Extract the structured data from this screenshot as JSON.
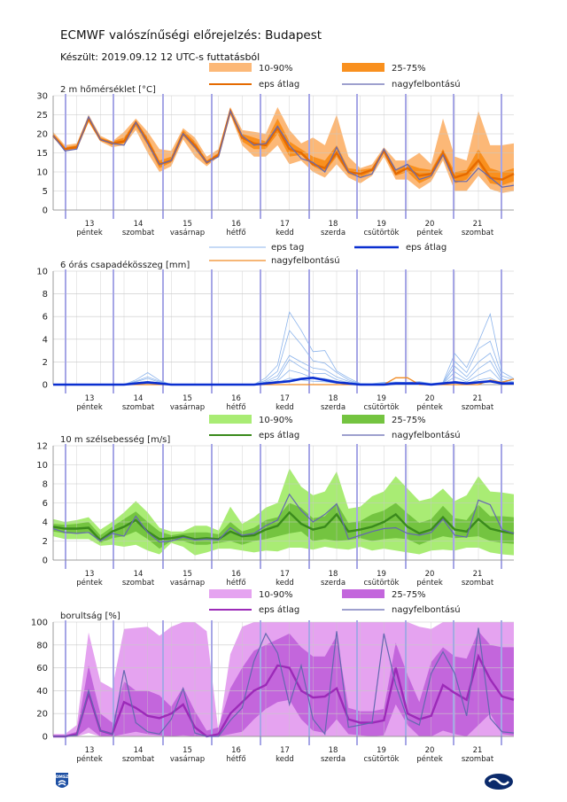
{
  "title": "ECMWF valószínűségi előrejelzés: Budapest",
  "subtitle": "Készült: 2019.09.12 12 UTC-s futtatásból",
  "days": [
    {
      "num": "13",
      "name": "péntek"
    },
    {
      "num": "14",
      "name": "szombat"
    },
    {
      "num": "15",
      "name": "vasárnap"
    },
    {
      "num": "16",
      "name": "hétfő"
    },
    {
      "num": "17",
      "name": "kedd"
    },
    {
      "num": "18",
      "name": "szerda"
    },
    {
      "num": "19",
      "name": "csütörtök"
    },
    {
      "num": "20",
      "name": "péntek"
    },
    {
      "num": "21",
      "name": "szombat"
    }
  ],
  "colors": {
    "temp_1090": "#fcb877",
    "temp_2575": "#f9901e",
    "temp_mean": "#e56a00",
    "prec_member": "#8cb4ec",
    "prec_mean": "#0a2fd0",
    "prec_hires": "#f08a24",
    "wind_1090": "#a9ec74",
    "wind_2575": "#74c440",
    "wind_mean": "#3a8a1c",
    "cloud_1090": "#e5a3f0",
    "cloud_2575": "#c366dc",
    "cloud_mean": "#9c2ab8",
    "hires": "#6468b0",
    "grid": "#c8c8c8",
    "day_line": "#a6a6e6"
  },
  "chart_data": [
    {
      "type": "area",
      "title": "2 m hőmérséklet [°C]",
      "ylim": [
        0,
        30
      ],
      "yticks": [
        0,
        5,
        10,
        15,
        20,
        25,
        30
      ],
      "legend": {
        "band_outer": "10-90%",
        "band_inner": "25-75%",
        "mean": "eps átlag",
        "hires": "nagyfelbontású"
      },
      "p10": [
        19,
        15.5,
        16,
        23,
        18,
        16.5,
        17,
        21,
        15,
        10,
        11.5,
        18.5,
        14,
        11.5,
        14,
        25,
        17,
        14,
        14,
        17,
        12,
        13,
        10,
        8.5,
        12,
        8.5,
        7,
        9,
        14,
        8,
        8,
        5.5,
        7.5,
        13,
        5,
        5,
        9,
        5.5,
        4.5,
        5
      ],
      "p25": [
        19.5,
        16,
        16,
        24,
        18.5,
        17,
        17.5,
        22,
        17,
        11,
        12.5,
        19.5,
        16,
        12,
        14,
        25.5,
        18,
        16,
        16,
        20,
        14,
        14.5,
        11.5,
        10,
        14,
        9.5,
        8.5,
        10,
        15,
        9,
        10,
        7,
        8.5,
        14,
        7,
        8,
        12,
        7,
        6.5,
        7.5
      ],
      "mean": [
        19.5,
        16,
        16.5,
        24,
        18.5,
        17.5,
        18,
        23,
        18,
        12,
        13,
        20,
        17,
        12.5,
        14.5,
        26,
        19,
        17.5,
        17,
        21.5,
        16,
        15,
        12,
        11,
        15,
        10,
        9.5,
        10.5,
        15.5,
        9.5,
        11,
        9,
        9.5,
        15,
        8.5,
        9.5,
        13,
        8.5,
        8,
        9.5
      ],
      "p75": [
        20,
        16.5,
        17,
        24.5,
        19,
        18,
        19,
        23.5,
        19,
        13,
        14,
        21,
        18,
        13,
        15,
        26.5,
        20,
        19,
        18,
        24,
        18,
        16,
        14,
        13,
        17,
        11,
        10.5,
        11,
        16,
        10.5,
        12,
        11,
        10.5,
        16,
        10,
        10.5,
        16,
        11,
        10,
        11
      ],
      "p90": [
        20.5,
        17,
        17.5,
        25,
        19.5,
        18,
        20.5,
        24,
        20.5,
        16,
        15.5,
        21.5,
        19,
        14,
        16,
        27,
        21,
        20.5,
        20,
        27,
        21,
        17.5,
        19,
        17,
        25,
        14,
        11,
        12,
        16.5,
        13,
        13,
        15,
        12,
        24,
        14,
        13,
        26,
        17,
        17,
        17.5
      ],
      "hires": [
        19.5,
        15.5,
        16,
        24.5,
        18.5,
        17.5,
        17,
        23,
        17.5,
        12,
        13,
        20,
        16.5,
        12.5,
        14,
        26,
        19.5,
        17,
        17.5,
        22,
        17,
        13.5,
        12.5,
        10,
        16.5,
        10,
        8.5,
        9.5,
        16,
        10.5,
        12,
        8,
        9,
        14.5,
        7.5,
        7.5,
        11,
        8.5,
        6,
        6.5
      ]
    },
    {
      "type": "line",
      "title": "6 órás csapadékösszeg [mm]",
      "ylim": [
        0,
        10
      ],
      "yticks": [
        0,
        2,
        4,
        6,
        8,
        10
      ],
      "legend": {
        "members": "eps tag",
        "mean": "eps átlag",
        "hires": "nagyfelbontású"
      },
      "mean": [
        0,
        0,
        0,
        0,
        0,
        0,
        0,
        0.1,
        0.2,
        0.1,
        0,
        0,
        0,
        0,
        0,
        0,
        0,
        0,
        0.1,
        0.2,
        0.3,
        0.5,
        0.6,
        0.4,
        0.2,
        0.1,
        0,
        0,
        0,
        0.1,
        0.1,
        0.1,
        0,
        0.1,
        0.2,
        0.1,
        0.2,
        0.3,
        0.1,
        0.1
      ],
      "hires": [
        0,
        0,
        0,
        0,
        0,
        0,
        0,
        0,
        0,
        0,
        0,
        0,
        0,
        0,
        0,
        0,
        0,
        0,
        0,
        0,
        0,
        0,
        0,
        0,
        0,
        0,
        0,
        0,
        0,
        0.6,
        0.6,
        0,
        0,
        0,
        0,
        0,
        0,
        0.4,
        0.2,
        0.5
      ],
      "member_max": [
        0,
        0,
        0,
        0,
        0,
        0,
        0,
        0.5,
        1.1,
        0.4,
        0,
        0,
        0,
        0,
        0,
        0,
        0,
        0,
        0.6,
        2,
        6.8,
        5,
        3.5,
        3,
        1.5,
        0.6,
        0.1,
        0.1,
        0.2,
        0.3,
        0.2,
        0.3,
        0.1,
        0.2,
        3.4,
        1.5,
        4.5,
        6.5,
        1.2,
        0.6
      ]
    },
    {
      "type": "area",
      "title": "10 m szélsebesség [m/s]",
      "ylim": [
        0,
        12
      ],
      "yticks": [
        0,
        2,
        4,
        6,
        8,
        10,
        12
      ],
      "legend": {
        "band_outer": "10-90%",
        "band_inner": "25-75%",
        "mean": "eps átlag",
        "hires": "nagyfelbontású"
      },
      "p10": [
        2.5,
        2.2,
        2.2,
        2.2,
        1.5,
        1.6,
        1.4,
        1.6,
        1,
        0.6,
        1.8,
        1.4,
        0.5,
        0.8,
        1.2,
        1.2,
        1,
        0.8,
        1,
        0.9,
        1.3,
        1.3,
        1.1,
        1.4,
        1.2,
        1.1,
        1.4,
        1,
        1.2,
        1,
        0.8,
        0.6,
        1,
        1.1,
        1,
        1.3,
        1.3,
        0.8,
        0.6,
        0.5
      ],
      "p25": [
        3,
        2.8,
        2.8,
        3,
        1.8,
        2.3,
        2.5,
        3,
        2.2,
        1.2,
        2,
        2,
        1.6,
        1.6,
        1.8,
        2,
        1.6,
        2,
        2.2,
        2.5,
        2.8,
        3,
        2,
        2.2,
        2,
        2.1,
        2.3,
        2,
        2.2,
        2.3,
        2.2,
        1.6,
        2.1,
        2.5,
        2.3,
        2.4,
        2.5,
        2,
        1.8,
        1.7
      ],
      "mean": [
        3.5,
        3.3,
        3.3,
        3.4,
        2.1,
        3,
        3.5,
        4.2,
        3,
        2.2,
        2.3,
        2.5,
        2.2,
        2.3,
        2.2,
        3,
        2.5,
        2.6,
        3.2,
        3.6,
        5,
        3.8,
        3.2,
        3.5,
        4.8,
        3,
        3.2,
        3.5,
        4,
        4.8,
        3.5,
        2.8,
        3.2,
        4.5,
        3.2,
        3,
        4.3,
        3.3,
        3,
        2.8
      ],
      "p75": [
        3.8,
        3.7,
        3.8,
        4,
        2.6,
        3.5,
        4.3,
        5.1,
        4,
        3,
        2.6,
        2.8,
        2.9,
        2.9,
        2.7,
        4,
        3,
        3.4,
        4.2,
        4.5,
        6,
        5.5,
        4.4,
        4.6,
        6,
        3.9,
        4.1,
        4.8,
        5.2,
        6,
        4.9,
        3.9,
        4.3,
        5.7,
        4.4,
        4.2,
        5.8,
        4.6,
        4.6,
        4.5
      ],
      "p90": [
        4.3,
        4,
        4.2,
        4.5,
        3.2,
        4,
        5,
        6.2,
        5,
        3.4,
        3,
        3,
        3.6,
        3.6,
        3.1,
        5.6,
        3.8,
        4.5,
        5.5,
        6,
        9.6,
        7.7,
        6.8,
        7.2,
        9.3,
        5.4,
        5.6,
        6.7,
        7.2,
        8.8,
        7.5,
        6.2,
        6.5,
        7.5,
        6.2,
        6.8,
        8.8,
        7.2,
        7.1,
        6.9
      ],
      "hires": [
        3.3,
        2.9,
        2.8,
        2.9,
        2,
        2.8,
        2.5,
        4.6,
        2.9,
        1.9,
        2,
        2.4,
        2.1,
        2.2,
        2.1,
        3.4,
        2.6,
        2.8,
        3.6,
        4.2,
        6.9,
        5.2,
        4,
        4.8,
        5.9,
        2.2,
        2.6,
        3,
        3.3,
        3.4,
        2.8,
        2.6,
        2.9,
        4.3,
        2.6,
        2.4,
        6.3,
        5.8,
        3.2,
        2.8
      ]
    },
    {
      "type": "area",
      "title": "borultság [%]",
      "ylim": [
        0,
        100
      ],
      "yticks": [
        0,
        20,
        40,
        60,
        80,
        100
      ],
      "legend": {
        "band_outer": "10-90%",
        "band_inner": "25-75%",
        "mean": "eps átlag",
        "hires": "nagyfelbontású"
      },
      "p10": [
        0,
        0,
        0,
        3,
        0,
        0,
        0,
        0,
        0,
        0,
        0,
        0,
        0,
        0,
        0,
        0,
        0,
        0,
        0,
        0,
        0,
        0,
        0,
        0,
        0,
        0,
        0,
        0,
        0,
        0,
        0,
        0,
        0,
        0,
        0,
        0,
        0,
        0,
        0,
        0
      ],
      "p25": [
        0,
        0,
        0,
        8,
        0,
        0,
        2,
        4,
        2,
        1,
        0,
        1,
        0,
        0,
        0,
        2,
        4,
        15,
        24,
        30,
        32,
        15,
        5,
        3,
        15,
        2,
        1,
        0,
        1,
        28,
        10,
        0,
        0,
        5,
        2,
        0,
        10,
        20,
        2,
        1
      ],
      "mean": [
        0,
        0,
        2,
        38,
        5,
        2,
        30,
        25,
        18,
        16,
        20,
        28,
        8,
        0,
        2,
        20,
        30,
        40,
        45,
        62,
        60,
        40,
        34,
        35,
        42,
        15,
        12,
        12,
        14,
        60,
        20,
        15,
        18,
        45,
        38,
        32,
        70,
        50,
        35,
        32
      ],
      "p75": [
        1,
        1,
        4,
        62,
        20,
        12,
        48,
        40,
        40,
        36,
        26,
        43,
        22,
        5,
        8,
        42,
        60,
        75,
        80,
        85,
        90,
        78,
        70,
        70,
        88,
        25,
        22,
        22,
        24,
        82,
        54,
        30,
        65,
        78,
        70,
        68,
        92,
        80,
        78,
        78
      ],
      "p90": [
        2,
        2,
        10,
        91,
        48,
        42,
        94,
        95,
        96,
        88,
        96,
        100,
        100,
        92,
        3,
        72,
        96,
        100,
        100,
        100,
        100,
        100,
        100,
        100,
        100,
        100,
        100,
        100,
        100,
        100,
        100,
        96,
        94,
        100,
        100,
        100,
        100,
        100,
        100,
        100
      ],
      "hires": [
        0,
        0,
        1,
        40,
        5,
        2,
        58,
        12,
        4,
        2,
        15,
        42,
        3,
        0,
        0,
        14,
        25,
        66,
        90,
        73,
        28,
        62,
        15,
        2,
        92,
        8,
        10,
        12,
        90,
        45,
        15,
        10,
        55,
        74,
        55,
        18,
        95,
        16,
        4,
        3
      ]
    }
  ]
}
